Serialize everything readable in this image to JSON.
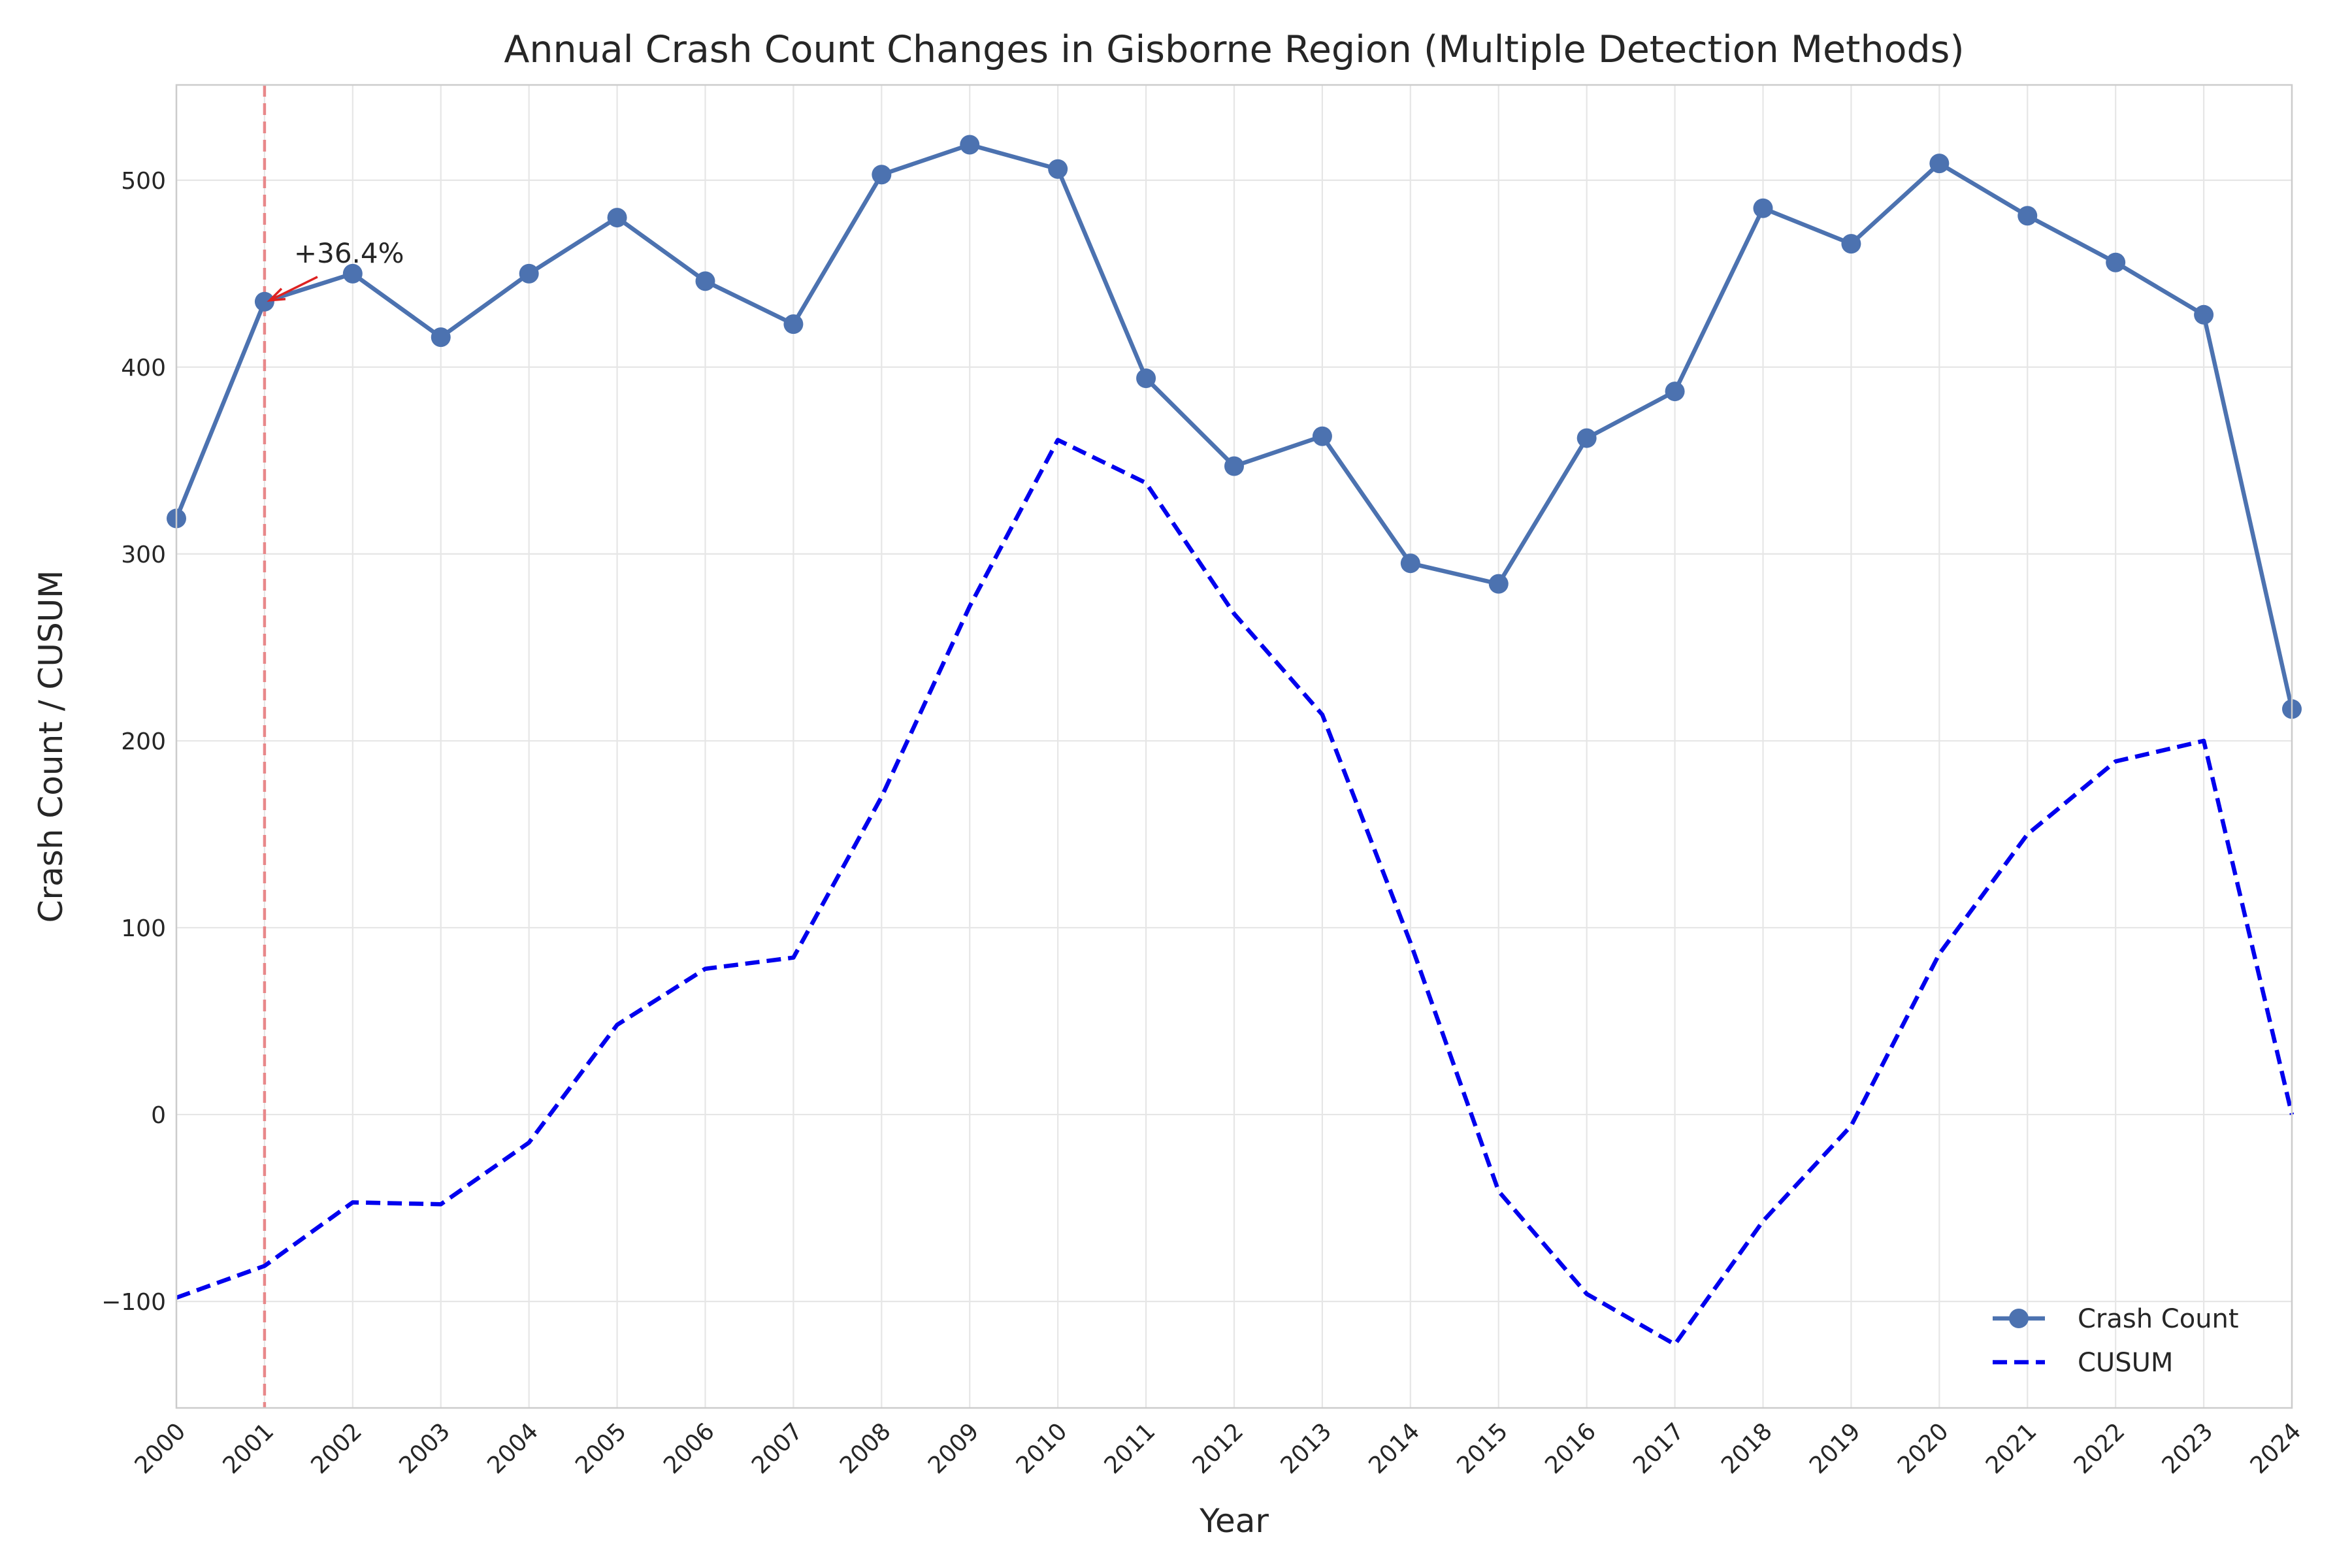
{
  "chart_data": {
    "type": "line",
    "title": "Annual Crash Count Changes in Gisborne Region (Multiple Detection Methods)",
    "xlabel": "Year",
    "ylabel": "Crash Count / CUSUM",
    "x": [
      2000,
      2001,
      2002,
      2003,
      2004,
      2005,
      2006,
      2007,
      2008,
      2009,
      2010,
      2011,
      2012,
      2013,
      2014,
      2015,
      2016,
      2017,
      2018,
      2019,
      2020,
      2021,
      2022,
      2023,
      2024
    ],
    "x_tick_labels": [
      "2000",
      "2001",
      "2002",
      "2003",
      "2004",
      "2005",
      "2006",
      "2007",
      "2008",
      "2009",
      "2010",
      "2011",
      "2012",
      "2013",
      "2014",
      "2015",
      "2016",
      "2017",
      "2018",
      "2019",
      "2020",
      "2021",
      "2022",
      "2023",
      "2024"
    ],
    "xlim": [
      2000,
      2024
    ],
    "ylim": [
      -157,
      551
    ],
    "y_ticks": [
      -100,
      0,
      100,
      200,
      300,
      400,
      500
    ],
    "y_tick_labels": [
      "−100",
      "0",
      "100",
      "200",
      "300",
      "400",
      "500"
    ],
    "grid": true,
    "legend_position": "lower right",
    "series": [
      {
        "name": "Crash Count",
        "style": "solid-with-markers",
        "color": "#4c72b0",
        "values": [
          319,
          435,
          450,
          416,
          450,
          480,
          446,
          423,
          503,
          519,
          506,
          394,
          347,
          363,
          295,
          284,
          362,
          387,
          485,
          466,
          509,
          481,
          456,
          428,
          217
        ]
      },
      {
        "name": "CUSUM",
        "style": "dashed",
        "color": "#0000ee",
        "values": [
          -98,
          -81,
          -47,
          -48,
          -15,
          48,
          78,
          84,
          170,
          272,
          361,
          338,
          268,
          214,
          92,
          -41,
          -96,
          -123,
          -57,
          -6,
          86,
          150,
          189,
          200,
          0
        ]
      }
    ],
    "change_point": {
      "x": 2001,
      "color": "#e8888a",
      "annotation": {
        "text": "+36.4%",
        "x": 2001,
        "y": 435,
        "arrow_color": "#dd2222"
      }
    }
  }
}
